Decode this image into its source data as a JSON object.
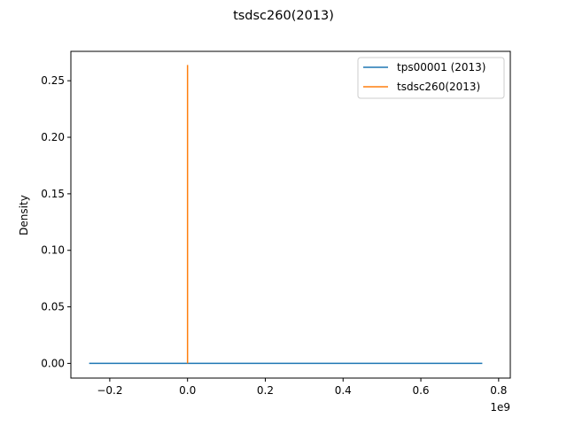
{
  "chart_data": {
    "type": "line",
    "title": "tsdsc260(2013)",
    "xlabel": "",
    "ylabel": "Density",
    "x_offset_label": "1e9",
    "xlim": [
      -0.3,
      0.83
    ],
    "ylim": [
      -0.013,
      0.276
    ],
    "x_ticks": [
      -0.2,
      0.0,
      0.2,
      0.4,
      0.6,
      0.8
    ],
    "x_tick_labels": [
      "−0.2",
      "0.0",
      "0.2",
      "0.4",
      "0.6",
      "0.8"
    ],
    "y_ticks": [
      0.0,
      0.05,
      0.1,
      0.15,
      0.2,
      0.25
    ],
    "y_tick_labels": [
      "0.00",
      "0.05",
      "0.10",
      "0.15",
      "0.20",
      "0.25"
    ],
    "grid": false,
    "legend_position": "top-right",
    "series": [
      {
        "name": "tps00001 (2013)",
        "color": "#1f77b4",
        "x": [
          -0.253,
          0.758
        ],
        "y": [
          0.0,
          0.0
        ]
      },
      {
        "name": "tsdsc260(2013)",
        "color": "#ff7f0e",
        "x": [
          0.0,
          0.0
        ],
        "y": [
          0.0,
          0.264
        ]
      }
    ]
  }
}
